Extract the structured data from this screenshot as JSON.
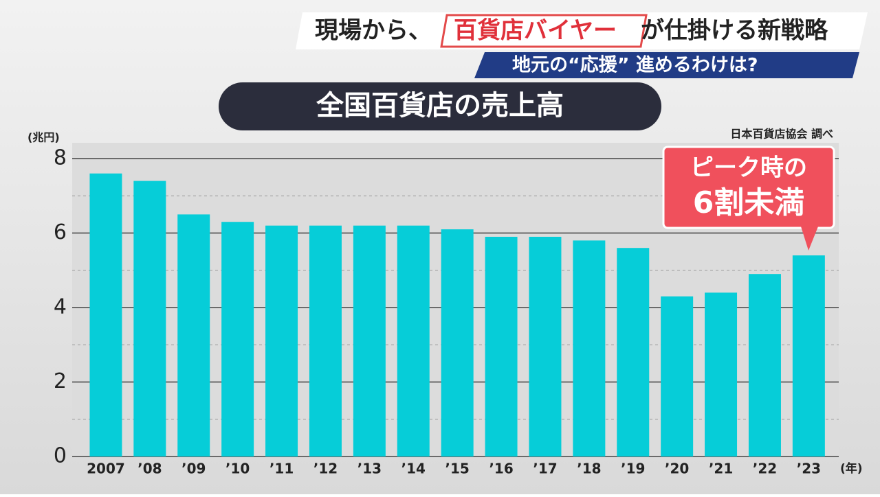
{
  "banner": {
    "lead": "現場から、",
    "highlight": "百貨店バイヤー",
    "rest": "が仕掛ける新戦略",
    "subline": "地元の“応援” 進めるわけは?"
  },
  "chart_data": {
    "type": "bar",
    "title": "全国百貨店の売上高",
    "y_unit": "(兆円)",
    "x_unit": "(年)",
    "source": "日本百貨店協会 調べ",
    "annotation": [
      "ピーク時の",
      "6割未満"
    ],
    "categories": [
      "2007",
      "’08",
      "’09",
      "’10",
      "’11",
      "’12",
      "’13",
      "’14",
      "’15",
      "’16",
      "’17",
      "’18",
      "’19",
      "’20",
      "’21",
      "’22",
      "’23"
    ],
    "values": [
      7.6,
      7.4,
      6.5,
      6.3,
      6.2,
      6.2,
      6.2,
      6.2,
      6.1,
      5.9,
      5.9,
      5.8,
      5.6,
      4.3,
      4.4,
      4.9,
      5.4
    ],
    "color": "#06cdd8",
    "ylim": [
      0,
      8
    ],
    "yticks": [
      0,
      2,
      4,
      6,
      8
    ],
    "minor_yticks": [
      1,
      3,
      5,
      7
    ],
    "grid": true
  }
}
